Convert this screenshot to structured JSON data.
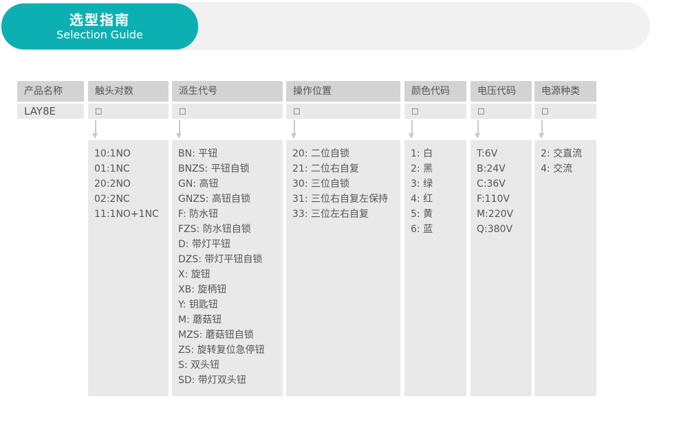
{
  "banner": {
    "title_zh": "选型指南",
    "title_en": "Selection Guide"
  },
  "colors": {
    "accent_teal": "#0cb0b2",
    "banner_track_gray": "#f1f1f1",
    "header_cell_gray": "#d3d3d3",
    "body_cell_gray": "#e9e9e9",
    "text_gray": "#555555",
    "arrow_gray": "#c9c9c9"
  },
  "table": {
    "product_name": "LAY8E",
    "placeholder_symbol": "□",
    "columns": [
      {
        "header": "产品名称",
        "value": "LAY8E",
        "items": []
      },
      {
        "header": "触头对数",
        "value": "□",
        "items": [
          "10:1NO",
          "01:1NC",
          "20:2NO",
          "02:2NC",
          "11:1NO+1NC"
        ]
      },
      {
        "header": "派生代号",
        "value": "□",
        "items": [
          "BN: 平钮",
          "BNZS: 平钮自锁",
          "GN: 高钮",
          "GNZS: 高钮自锁",
          "F: 防水钮",
          "FZS: 防水钮自锁",
          "D: 带灯平钮",
          "DZS: 带灯平钮自锁",
          "X: 旋钮",
          "XB: 旋柄钮",
          "Y: 钥匙钮",
          "M: 蘑菇钮",
          "MZS: 蘑菇钮自锁",
          "ZS: 旋转复位急停钮",
          "S: 双头钮",
          "SD: 带灯双头钮"
        ]
      },
      {
        "header": "操作位置",
        "value": "□",
        "items": [
          "20: 二位自锁",
          "21: 二位右自复",
          "30: 三位自锁",
          "31: 三位右自复左保持",
          "33: 三位左右自复"
        ]
      },
      {
        "header": "颜色代码",
        "value": "□",
        "items": [
          "1: 白",
          "2: 黑",
          "3: 绿",
          "4: 红",
          "5: 黄",
          "6: 蓝"
        ]
      },
      {
        "header": "电压代码",
        "value": "□",
        "items": [
          "T:6V",
          "B:24V",
          "C:36V",
          "F:110V",
          "M:220V",
          "Q:380V"
        ]
      },
      {
        "header": "电源种类",
        "value": "□",
        "items": [
          "2: 交直流",
          "4: 交流"
        ]
      }
    ]
  }
}
